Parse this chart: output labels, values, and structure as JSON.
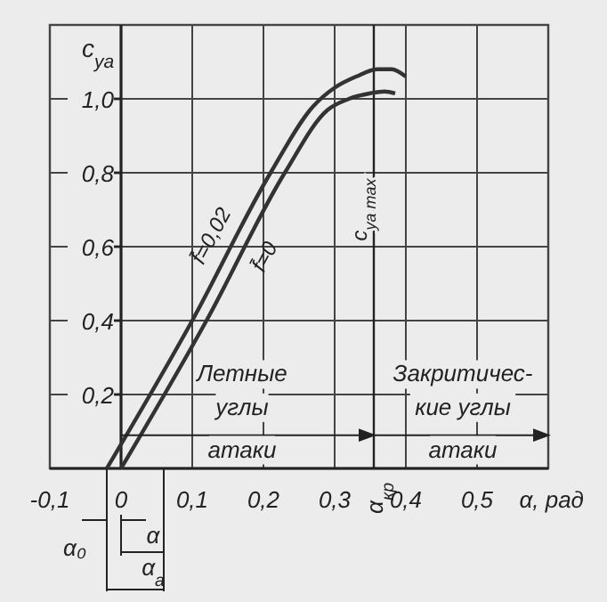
{
  "chart_data": {
    "type": "line",
    "xlabel": "α, рад",
    "ylabel": "c$_{ya}$",
    "xlim": [
      -0.1,
      0.6
    ],
    "ylim": [
      0,
      1.2
    ],
    "xticks": [
      {
        "value": -0.1,
        "label": "-0,1"
      },
      {
        "value": 0,
        "label": "0"
      },
      {
        "value": 0.1,
        "label": "0,1"
      },
      {
        "value": 0.2,
        "label": "0,2"
      },
      {
        "value": 0.3,
        "label": "0,3"
      },
      {
        "value": 0.4,
        "label": "0,4"
      },
      {
        "value": 0.5,
        "label": "0,5"
      }
    ],
    "yticks": [
      {
        "value": 0.2,
        "label": "0,2"
      },
      {
        "value": 0.4,
        "label": "0,4"
      },
      {
        "value": 0.6,
        "label": "0,6"
      },
      {
        "value": 0.8,
        "label": "0,8"
      },
      {
        "value": 1.0,
        "label": "1,0"
      }
    ],
    "grid": true,
    "marker": "none",
    "line_style": "solid",
    "series": [
      {
        "name": "f̄=0,02",
        "color": "#333333",
        "x": [
          -0.02,
          0.1,
          0.21,
          0.27,
          0.3,
          0.33,
          0.36,
          0.38,
          0.4
        ],
        "values": [
          0,
          0.4,
          0.8,
          0.98,
          1.03,
          1.06,
          1.08,
          1.08,
          1.06
        ]
      },
      {
        "name": "f̄=0",
        "color": "#333333",
        "x": [
          0,
          0.12,
          0.23,
          0.29,
          0.32,
          0.35,
          0.37,
          0.385
        ],
        "values": [
          0,
          0.4,
          0.8,
          0.97,
          1.0,
          1.015,
          1.02,
          1.015
        ]
      }
    ],
    "ref_lines": [
      {
        "axis": "x",
        "value": 0.355,
        "label": "α$_{кр}$"
      }
    ],
    "annotations": [
      {
        "text": "c$_{ya max}$",
        "x": 0.355,
        "y": 0.7
      },
      "Летные\nуглы\nатаки",
      "Закритичес-\nкие углы\nатаки",
      "α₀",
      "α",
      "α$_{a}$"
    ]
  }
}
